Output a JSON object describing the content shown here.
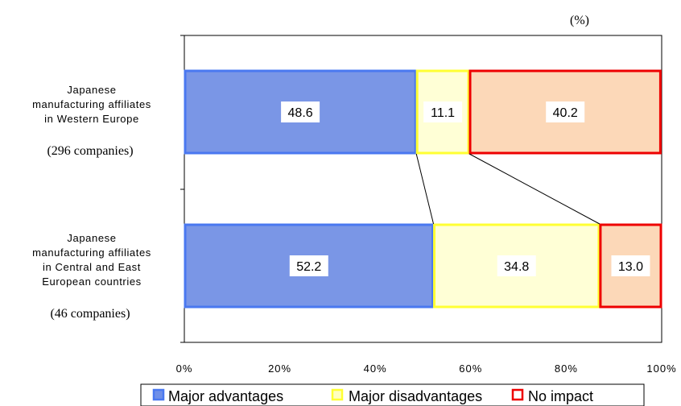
{
  "chart_data": {
    "type": "bar",
    "orientation": "horizontal",
    "stacked": true,
    "unit_label": "(%)",
    "categories": [
      {
        "lines": [
          "Japanese",
          "manufacturing affiliates",
          "in Western Europe"
        ],
        "count": "(296 companies)"
      },
      {
        "lines": [
          "Japanese",
          "manufacturing affiliates",
          "in Central and East",
          "European countries"
        ],
        "count": "(46 companies)"
      }
    ],
    "series": [
      {
        "name": "Major advantages",
        "values": [
          48.6,
          52.2
        ],
        "labels": [
          "48.6",
          "52.2"
        ]
      },
      {
        "name": "Major disadvantages",
        "values": [
          11.1,
          34.8
        ],
        "labels": [
          "11.1",
          "34.8"
        ]
      },
      {
        "name": "No impact",
        "values": [
          40.2,
          13.0
        ],
        "labels": [
          "40.2",
          "13.0"
        ]
      }
    ],
    "xlim": [
      0,
      100
    ],
    "x_ticks": [
      "0%",
      "20%",
      "40%",
      "60%",
      "80%",
      "100%"
    ],
    "grid": false,
    "legend": {
      "placement": "bottom"
    },
    "series_lines": true
  },
  "colors": {
    "series_fill": [
      "#7a96e6",
      "#ffffd6",
      "#fcd8b8"
    ],
    "series_stroke": [
      "#4a78f0",
      "#ffff33",
      "#ee0000"
    ],
    "legend_fill": [
      "#6f8fe8",
      "#ffffc0",
      "#ffffff"
    ]
  }
}
